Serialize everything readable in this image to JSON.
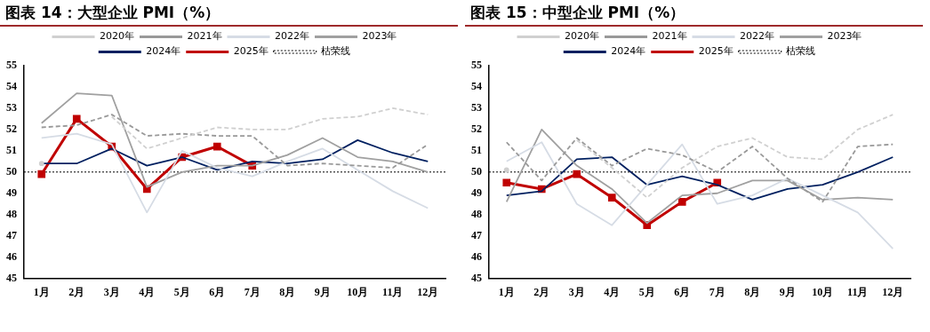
{
  "chart_data": [
    {
      "type": "line",
      "title": "图表 14：大型企业 PMI（%）",
      "categories": [
        "1月",
        "2月",
        "3月",
        "4月",
        "5月",
        "6月",
        "7月",
        "8月",
        "9月",
        "10月",
        "11月",
        "12月"
      ],
      "ylim": [
        45,
        55
      ],
      "yticks": [
        45,
        46,
        47,
        48,
        49,
        50,
        51,
        52,
        53,
        54,
        55
      ],
      "grid": false,
      "legend": "top",
      "series": [
        {
          "name": "2020年",
          "color": "#d0d0d0",
          "line_style": "dashed",
          "marker": "none",
          "values": [
            50.4,
            null,
            52.6,
            51.1,
            51.6,
            52.1,
            52.0,
            52.0,
            52.5,
            52.6,
            53.0,
            52.7
          ]
        },
        {
          "name": "2021年",
          "color": "#999999",
          "line_style": "dashed",
          "marker": "none",
          "values": [
            52.1,
            52.2,
            52.7,
            51.7,
            51.8,
            51.7,
            51.7,
            50.3,
            50.4,
            50.3,
            50.2,
            51.3
          ]
        },
        {
          "name": "2022年",
          "color": "#d6dce5",
          "line_style": "solid",
          "marker": "none",
          "values": [
            51.6,
            51.8,
            51.3,
            48.1,
            51.0,
            50.2,
            49.8,
            50.5,
            51.1,
            50.1,
            49.1,
            48.3
          ]
        },
        {
          "name": "2023年",
          "color": "#a0a0a0",
          "line_style": "solid",
          "marker": "none",
          "values": [
            52.3,
            53.7,
            53.6,
            49.3,
            50.0,
            50.3,
            50.3,
            50.8,
            51.6,
            50.7,
            50.5,
            50.0
          ]
        },
        {
          "name": "2024年",
          "color": "#002060",
          "line_style": "solid",
          "marker": "none",
          "values": [
            50.4,
            50.4,
            51.1,
            50.3,
            50.7,
            50.1,
            50.5,
            50.4,
            50.6,
            51.5,
            50.9,
            50.5
          ]
        },
        {
          "name": "2025年",
          "color": "#c00000",
          "line_style": "solid",
          "marker": "square",
          "values": [
            49.9,
            52.5,
            51.2,
            49.2,
            50.7,
            51.2,
            50.3,
            null,
            null,
            null,
            null,
            null
          ]
        }
      ],
      "ref_lines": [
        {
          "axis": "y",
          "value": 50,
          "label": "枯荣线",
          "color": "#000000",
          "line_style": "dotted"
        }
      ]
    },
    {
      "type": "line",
      "title": "图表 15：中型企业 PMI（%）",
      "categories": [
        "1月",
        "2月",
        "3月",
        "4月",
        "5月",
        "6月",
        "7月",
        "8月",
        "9月",
        "10月",
        "11月",
        "12月"
      ],
      "ylim": [
        45,
        55
      ],
      "yticks": [
        45,
        46,
        47,
        48,
        49,
        50,
        51,
        52,
        53,
        54,
        55
      ],
      "grid": false,
      "legend": "top",
      "series": [
        {
          "name": "2020年",
          "color": "#d0d0d0",
          "line_style": "dashed",
          "marker": "none",
          "values": [
            50.1,
            null,
            51.5,
            50.2,
            48.8,
            50.2,
            51.2,
            51.6,
            50.7,
            50.6,
            52.0,
            52.7
          ]
        },
        {
          "name": "2021年",
          "color": "#999999",
          "line_style": "dashed",
          "marker": "none",
          "values": [
            51.4,
            49.6,
            51.6,
            50.3,
            51.1,
            50.8,
            50.0,
            51.2,
            49.7,
            48.6,
            51.2,
            51.3
          ]
        },
        {
          "name": "2022年",
          "color": "#d6dce5",
          "line_style": "solid",
          "marker": "none",
          "values": [
            50.5,
            51.4,
            48.5,
            47.5,
            49.4,
            51.3,
            48.5,
            48.9,
            49.7,
            48.9,
            48.1,
            46.4
          ]
        },
        {
          "name": "2023年",
          "color": "#a0a0a0",
          "line_style": "solid",
          "marker": "none",
          "values": [
            48.6,
            52.0,
            50.3,
            49.2,
            47.6,
            48.9,
            49.0,
            49.6,
            49.6,
            48.7,
            48.8,
            48.7
          ]
        },
        {
          "name": "2024年",
          "color": "#002060",
          "line_style": "solid",
          "marker": "none",
          "values": [
            48.9,
            49.1,
            50.6,
            50.7,
            49.4,
            49.8,
            49.4,
            48.7,
            49.2,
            49.4,
            50.0,
            50.7
          ]
        },
        {
          "name": "2025年",
          "color": "#c00000",
          "line_style": "solid",
          "marker": "square",
          "values": [
            49.5,
            49.2,
            49.9,
            48.8,
            47.5,
            48.6,
            49.5,
            null,
            null,
            null,
            null,
            null
          ]
        }
      ],
      "ref_lines": [
        {
          "axis": "y",
          "value": 50,
          "label": "枯荣线",
          "color": "#000000",
          "line_style": "dotted"
        }
      ]
    }
  ]
}
